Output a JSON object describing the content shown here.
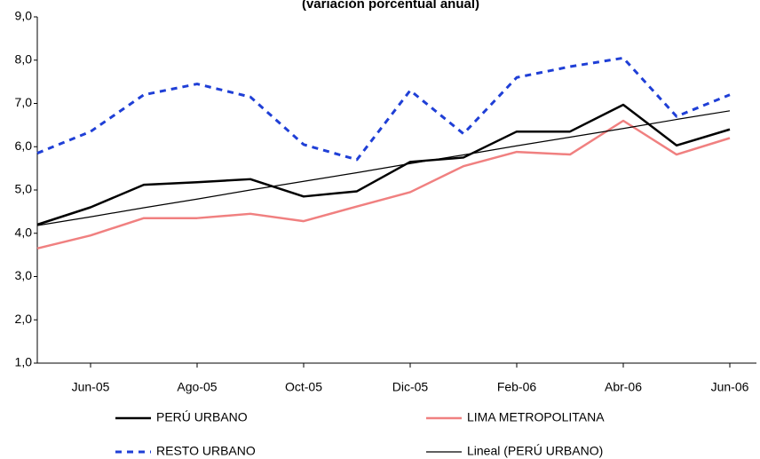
{
  "chart_data": {
    "type": "line",
    "title": "(variación porcentual anual)",
    "categories": [
      null,
      "Jun-05",
      null,
      "Ago-05",
      null,
      "Oct-05",
      null,
      "Dic-05",
      null,
      "Feb-06",
      null,
      "Abr-06",
      null,
      "Jun-06"
    ],
    "series": [
      {
        "name": "PERÚ URBANO",
        "color": "#000000",
        "values": [
          4.2,
          4.6,
          5.12,
          5.18,
          5.25,
          4.85,
          4.97,
          5.65,
          5.75,
          6.35,
          6.35,
          6.97,
          6.03,
          6.4
        ]
      },
      {
        "name": "LIMA METROPOLITANA",
        "color": "#f08080",
        "values": [
          3.65,
          3.95,
          4.35,
          4.35,
          4.45,
          4.28,
          4.62,
          4.95,
          5.55,
          5.88,
          5.82,
          6.6,
          5.82,
          6.2
        ]
      },
      {
        "name": "RESTO URBANO",
        "color": "#1f3fd6",
        "dashed": true,
        "values": [
          5.85,
          6.35,
          7.2,
          7.45,
          7.15,
          6.05,
          5.7,
          7.3,
          6.3,
          7.6,
          7.85,
          8.05,
          6.7,
          7.2
        ]
      },
      {
        "name": "Lineal (PERÚ URBANO)",
        "color": "#000000",
        "thin": true,
        "values": [
          4.18,
          4.38,
          4.59,
          4.79,
          5.0,
          5.2,
          5.4,
          5.61,
          5.81,
          6.02,
          6.22,
          6.42,
          6.63,
          6.83
        ]
      }
    ],
    "ylim": [
      1,
      9
    ],
    "yticks": [
      {
        "value": 1,
        "label": "1,0"
      },
      {
        "value": 2,
        "label": "2,0"
      },
      {
        "value": 3,
        "label": "3,0"
      },
      {
        "value": 4,
        "label": "4,0"
      },
      {
        "value": 5,
        "label": "5,0"
      },
      {
        "value": 6,
        "label": "6,0"
      },
      {
        "value": 7,
        "label": "7,0"
      },
      {
        "value": 8,
        "label": "8,0"
      },
      {
        "value": 9,
        "label": "9,0"
      }
    ],
    "grid": false,
    "legend": "bottom"
  }
}
